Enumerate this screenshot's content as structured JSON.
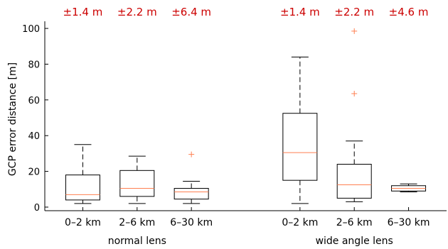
{
  "chart_data": {
    "type": "box",
    "title": "",
    "xlabel": "",
    "ylabel": "GCP error distance [m]",
    "ylim": [
      -2,
      104
    ],
    "yticks": [
      0,
      20,
      40,
      60,
      80,
      100
    ],
    "grid": false,
    "groups": [
      {
        "label": "normal lens",
        "positions": [
          1,
          2,
          3
        ]
      },
      {
        "label": "wide angle lens",
        "positions": [
          5,
          6,
          7
        ]
      }
    ],
    "boxes": [
      {
        "category": "0–2 km",
        "position": 1,
        "accuracy_label": "±1.4 m",
        "whisker_low": 2.0,
        "q1": 4.0,
        "median": 7.0,
        "q3": 18.0,
        "whisker_high": 35.0,
        "outliers": []
      },
      {
        "category": "2–6 km",
        "position": 2,
        "accuracy_label": "±2.2 m",
        "whisker_low": 2.0,
        "q1": 6.0,
        "median": 10.5,
        "q3": 20.5,
        "whisker_high": 28.5,
        "outliers": []
      },
      {
        "category": "6–30 km",
        "position": 3,
        "accuracy_label": "±6.4 m",
        "whisker_low": 2.0,
        "q1": 4.5,
        "median": 8.5,
        "q3": 10.5,
        "whisker_high": 14.5,
        "outliers": [
          29.5
        ]
      },
      {
        "category": "0–2 km",
        "position": 5,
        "accuracy_label": "±1.4 m",
        "whisker_low": 2.0,
        "q1": 15.0,
        "median": 30.5,
        "q3": 52.5,
        "whisker_high": 84.0,
        "outliers": []
      },
      {
        "category": "2–6 km",
        "position": 6,
        "accuracy_label": "±2.2 m",
        "whisker_low": 3.0,
        "q1": 5.0,
        "median": 12.5,
        "q3": 24.0,
        "whisker_high": 37.0,
        "outliers": [
          63.5,
          98.5
        ]
      },
      {
        "category": "6–30 km",
        "position": 7,
        "accuracy_label": "±4.6 m",
        "whisker_low": 8.5,
        "q1": 9.0,
        "median": 10.5,
        "q3": 12.0,
        "whisker_high": 13.0,
        "outliers": []
      }
    ]
  },
  "colors": {
    "accuracy_text": "#cc0000",
    "median": "#ff7f50",
    "outlier": "#ff7f50",
    "box": "#000000",
    "axis": "#000000"
  }
}
